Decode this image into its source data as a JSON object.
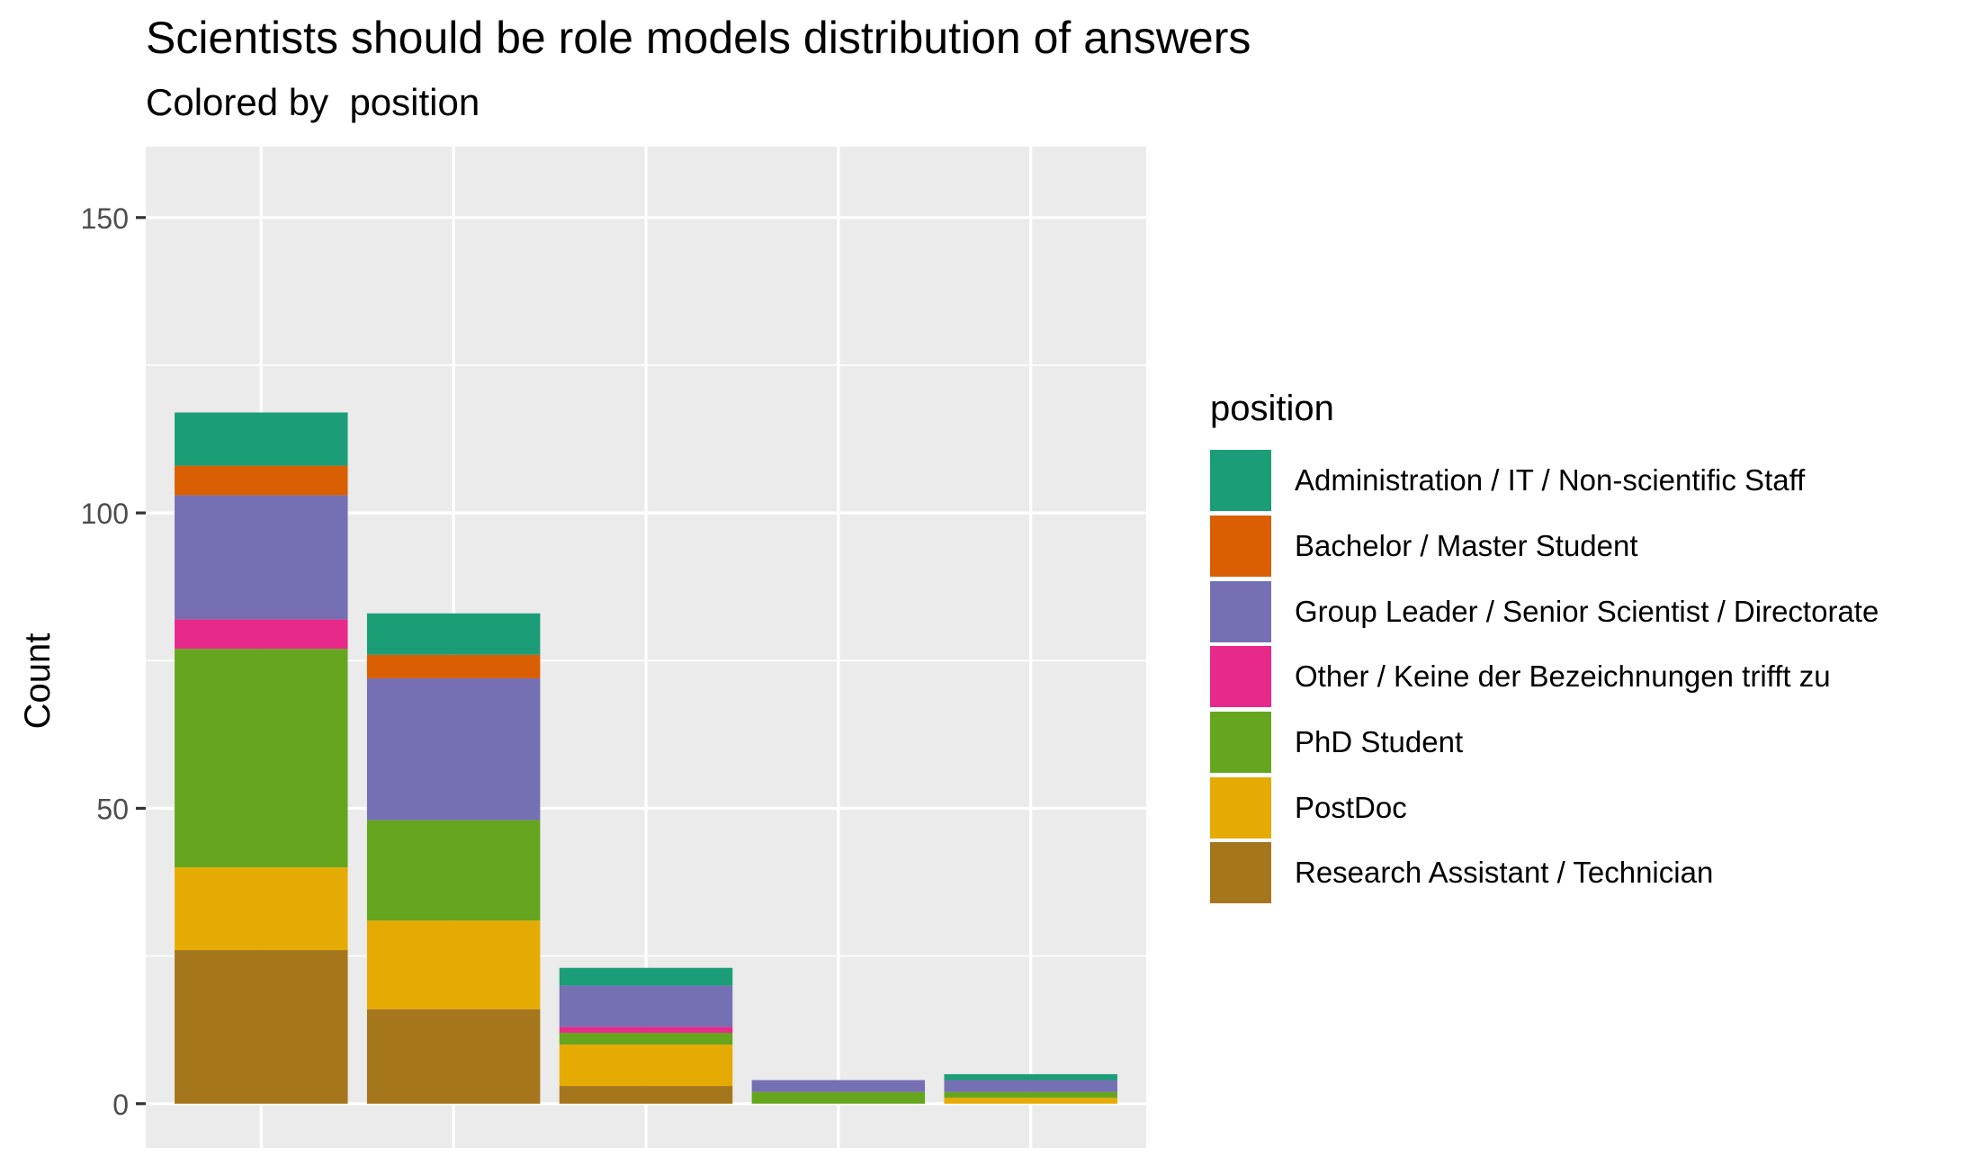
{
  "chart_data": {
    "type": "bar",
    "stacked": true,
    "title": "Scientists should be role models distribution of answers",
    "subtitle": "Colored by  position",
    "xlabel": "",
    "ylabel": "Count",
    "ylim": [
      -7.5,
      162
    ],
    "yticks": [
      0,
      50,
      100,
      150
    ],
    "ytick_labels": [
      "0",
      "50",
      "100",
      "150"
    ],
    "categories": [
      "",
      "",
      "",
      "",
      ""
    ],
    "legend_title": "position",
    "legend_position": "right",
    "grid": true,
    "series": [
      {
        "name": "Research Assistant / Technician",
        "color": "#A6761D",
        "values": [
          26,
          16,
          3,
          0,
          0
        ]
      },
      {
        "name": "PostDoc",
        "color": "#E6AB02",
        "values": [
          14,
          15,
          7,
          0,
          1
        ]
      },
      {
        "name": "PhD Student",
        "color": "#66A61E",
        "values": [
          37,
          17,
          2,
          2,
          1
        ]
      },
      {
        "name": "Other / Keine der Bezeichnungen trifft zu",
        "color": "#E7298A",
        "values": [
          5,
          0,
          1,
          0,
          0
        ]
      },
      {
        "name": "Group Leader / Senior Scientist / Directorate",
        "color": "#7570B3",
        "values": [
          21,
          24,
          7,
          2,
          2
        ]
      },
      {
        "name": "Bachelor / Master Student",
        "color": "#D95F02",
        "values": [
          5,
          4,
          0,
          0,
          0
        ]
      },
      {
        "name": "Administration / IT / Non-scientific Staff",
        "color": "#1B9E77",
        "values": [
          9,
          7,
          3,
          0,
          1
        ]
      }
    ],
    "legend_order": [
      "Administration / IT / Non-scientific Staff",
      "Bachelor / Master Student",
      "Group Leader / Senior Scientist / Directorate",
      "Other / Keine der Bezeichnungen trifft zu",
      "PhD Student",
      "PostDoc",
      "Research Assistant / Technician"
    ],
    "colors": {
      "panel_background": "#EBEBEB",
      "grid": "#FFFFFF",
      "axis_text": "#4D4D4D"
    }
  }
}
